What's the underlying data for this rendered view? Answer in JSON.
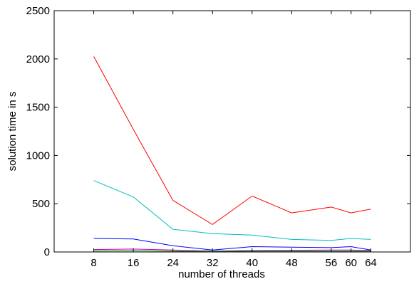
{
  "chart_data": {
    "type": "line",
    "xlabel": "number of threads",
    "ylabel": "solution time in s",
    "xlim": [
      0,
      72
    ],
    "ylim": [
      0,
      2500
    ],
    "grid": false,
    "x": [
      8,
      16,
      24,
      32,
      40,
      48,
      56,
      60,
      64
    ],
    "x_tick_labels": [
      "8",
      "16",
      "24",
      "32",
      "40",
      "48",
      "56",
      "60",
      "64"
    ],
    "y_ticks": [
      0,
      500,
      1000,
      1500,
      2000,
      2500
    ],
    "y_tick_labels": [
      "0",
      "500",
      "1000",
      "1500",
      "2000",
      "2500"
    ],
    "series": [
      {
        "color": "#ff0000",
        "values": [
          2025,
          1270,
          535,
          285,
          580,
          405,
          465,
          405,
          445
        ]
      },
      {
        "color": "#00bfbf",
        "values": [
          740,
          570,
          235,
          190,
          175,
          130,
          120,
          140,
          130
        ]
      },
      {
        "color": "#0000ff",
        "values": [
          140,
          135,
          65,
          20,
          55,
          50,
          45,
          55,
          20
        ]
      },
      {
        "color": "#bf00bf",
        "values": [
          25,
          30,
          20,
          10,
          15,
          18,
          20,
          20,
          15
        ]
      },
      {
        "color": "#008000",
        "values": [
          10,
          12,
          8,
          5,
          8,
          8,
          8,
          8,
          8
        ]
      }
    ]
  }
}
